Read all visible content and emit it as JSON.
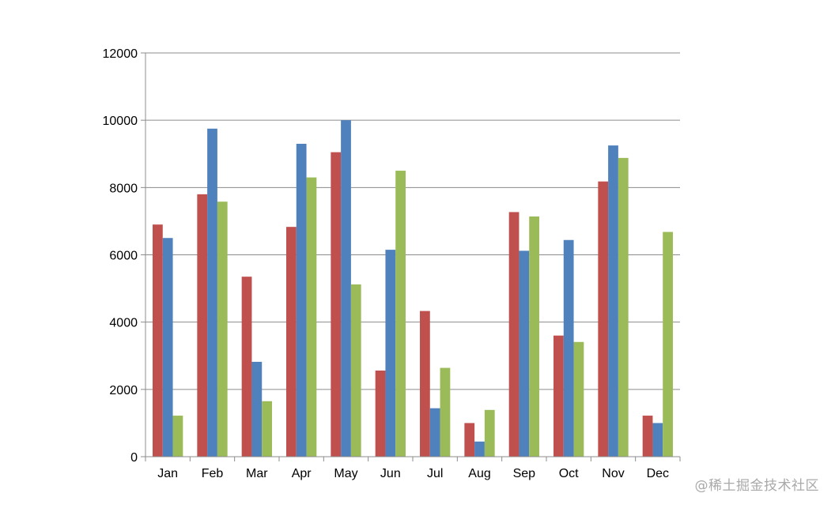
{
  "chart_data": {
    "type": "bar",
    "categories": [
      "Jan",
      "Feb",
      "Mar",
      "Apr",
      "May",
      "Jun",
      "Jul",
      "Aug",
      "Sep",
      "Oct",
      "Nov",
      "Dec"
    ],
    "series": [
      {
        "color": "#c0504d",
        "values": [
          6900,
          7800,
          5350,
          6830,
          9050,
          2560,
          4330,
          1000,
          7270,
          3600,
          8180,
          1220
        ]
      },
      {
        "color": "#4f81bd",
        "values": [
          6500,
          9750,
          2820,
          9300,
          10000,
          6150,
          1440,
          450,
          6120,
          6440,
          9250,
          1000
        ]
      },
      {
        "color": "#9bbb59",
        "values": [
          1220,
          7580,
          1650,
          8300,
          5120,
          8500,
          2640,
          1390,
          7140,
          3410,
          8880,
          6680
        ]
      }
    ],
    "ylim": [
      0,
      12000
    ],
    "yticks": [
      "0",
      "2000",
      "4000",
      "6000",
      "8000",
      "10000",
      "12000"
    ],
    "grid": true,
    "legend": "none",
    "title": "",
    "xlabel": "",
    "ylabel": ""
  },
  "watermark": "@稀土掘金技术社区"
}
